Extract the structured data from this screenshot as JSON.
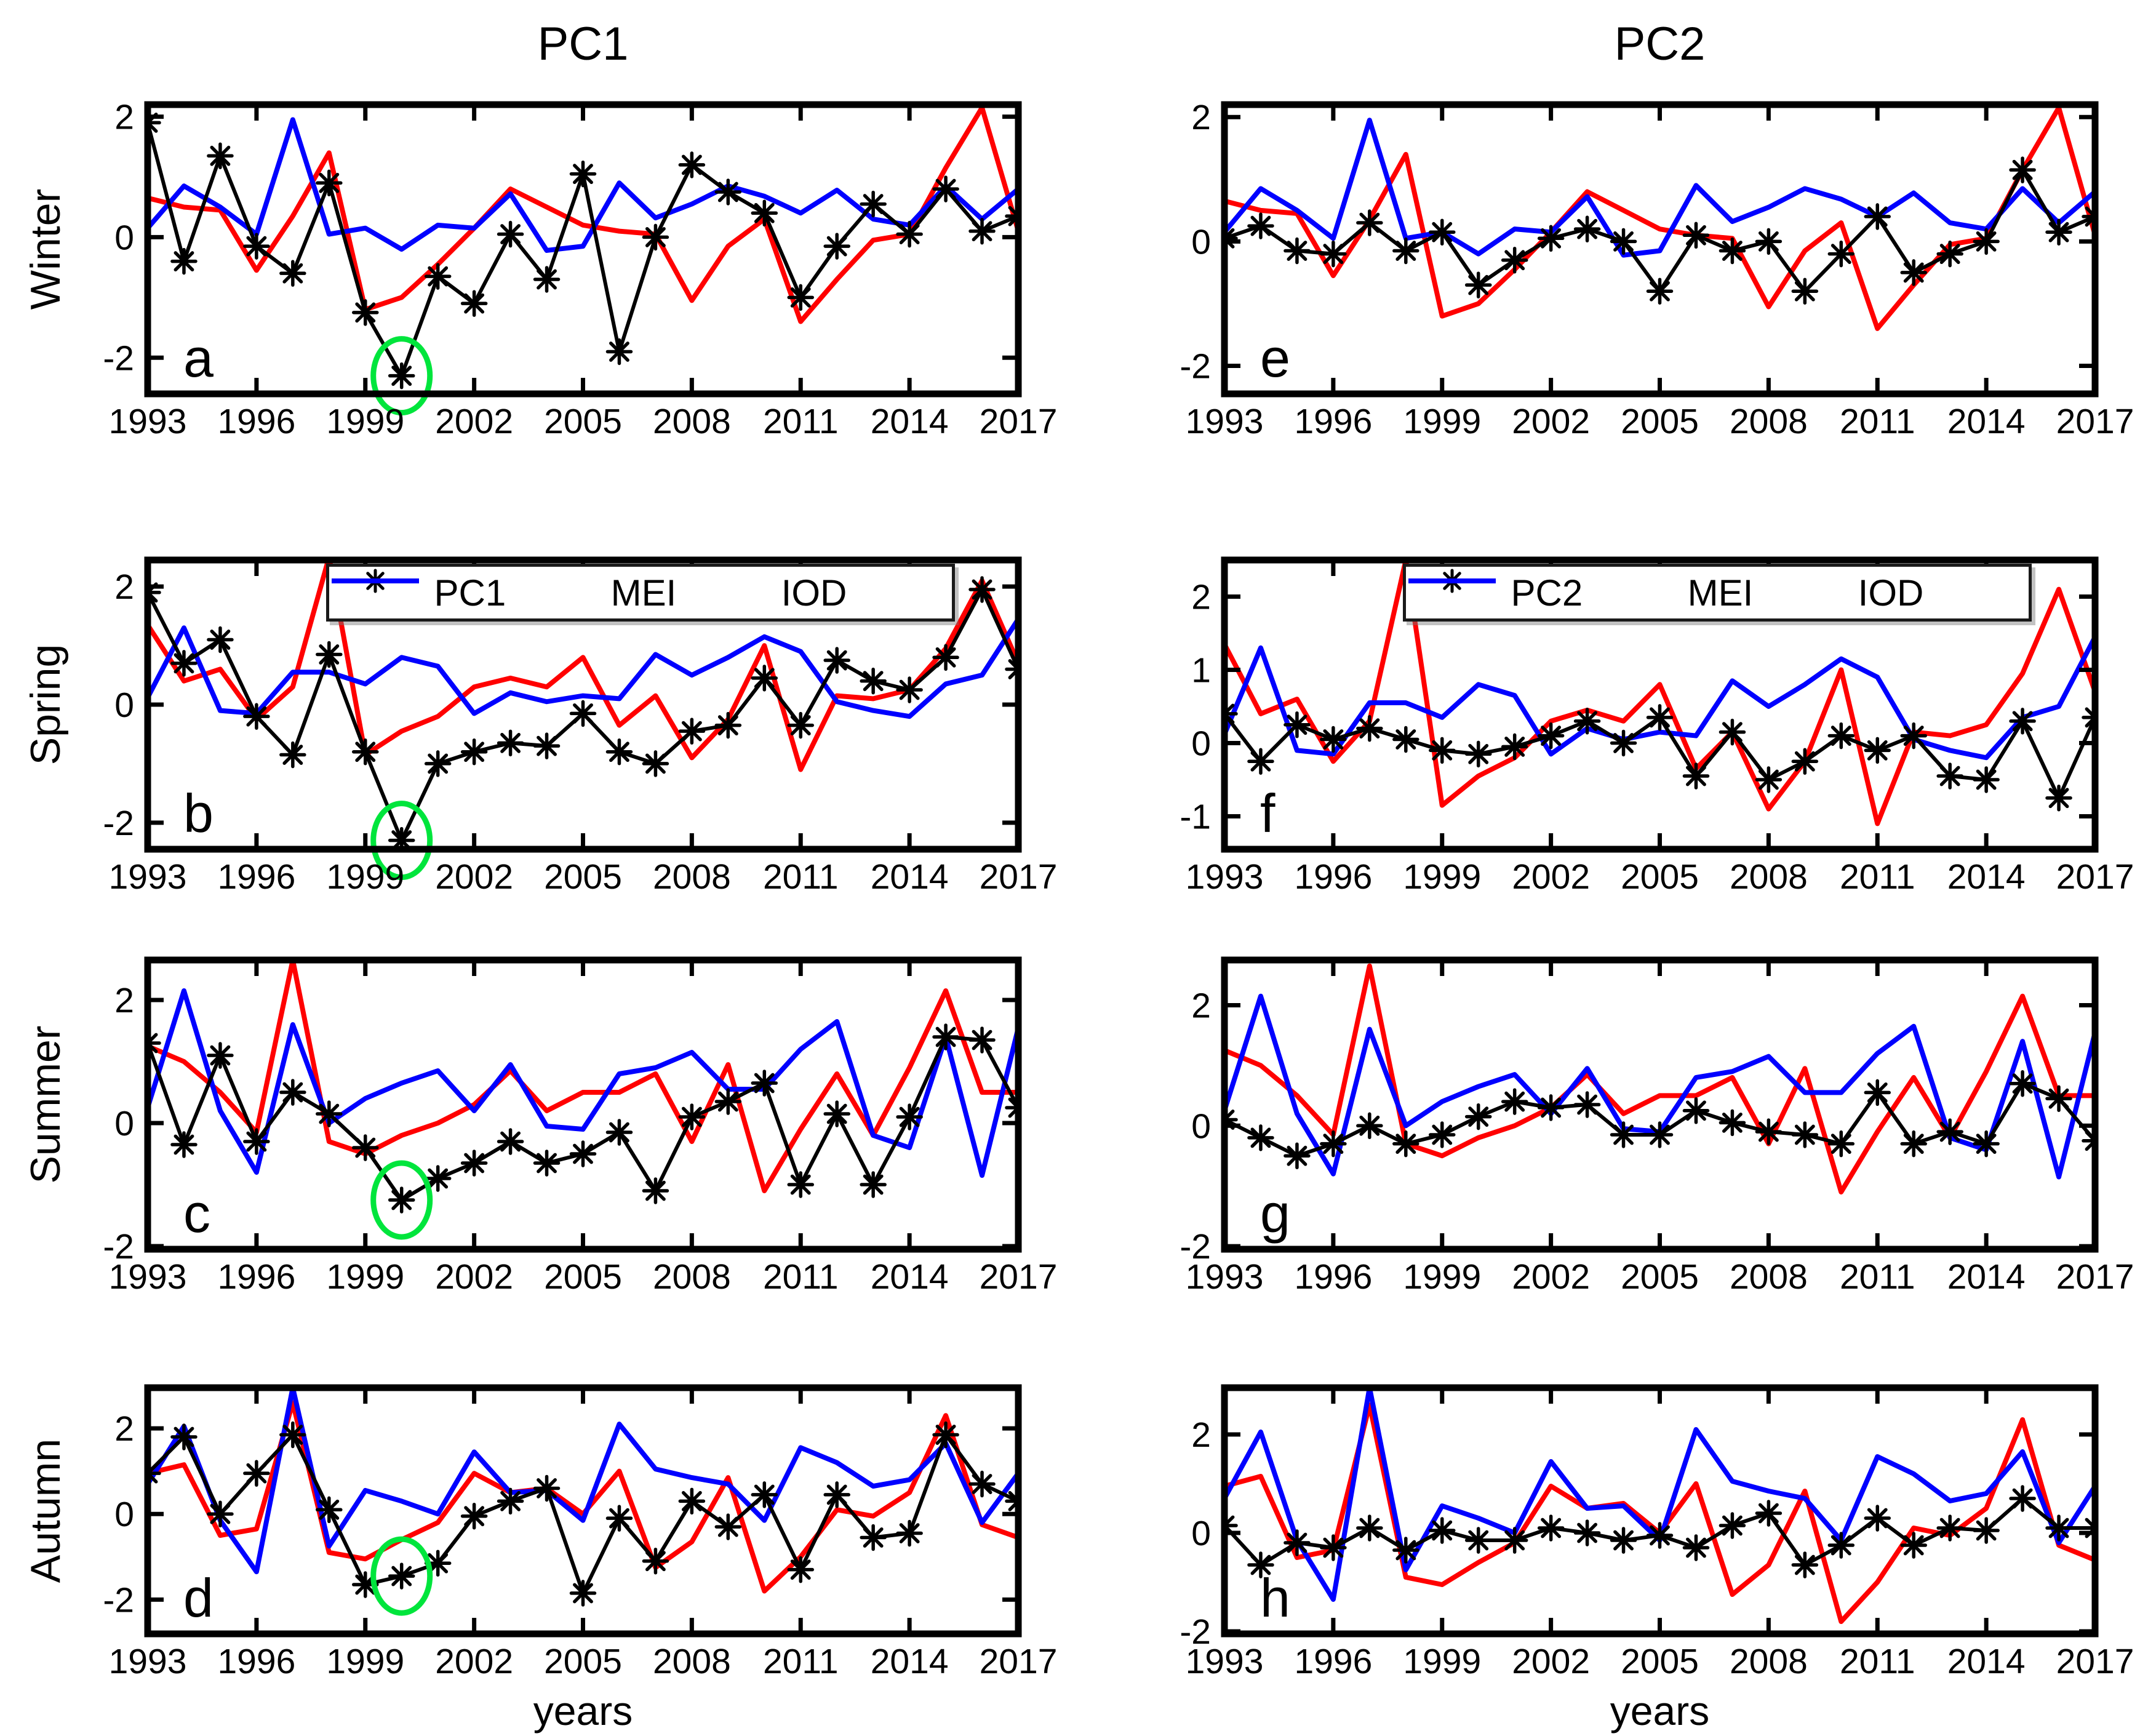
{
  "figure": {
    "column_titles": [
      "PC1",
      "PC2"
    ],
    "row_labels": [
      "Winter",
      "Spring",
      "Summer",
      "Autumn"
    ],
    "x_axis_label": "years"
  },
  "colors": {
    "pc": "#000000",
    "mei": "#ff0000",
    "iod": "#0000ff",
    "highlight": "#00e53c",
    "axis": "#000000"
  },
  "chart_data": {
    "type": "line",
    "x": [
      1993,
      1994,
      1995,
      1996,
      1997,
      1998,
      1999,
      2000,
      2001,
      2002,
      2003,
      2004,
      2005,
      2006,
      2007,
      2008,
      2009,
      2010,
      2011,
      2012,
      2013,
      2014,
      2015,
      2016,
      2017
    ],
    "xtick_labels": [
      1993,
      1996,
      1999,
      2002,
      2005,
      2008,
      2011,
      2014,
      2017
    ],
    "panels": [
      {
        "letter": "a",
        "season": "Winter",
        "column": "PC1",
        "ylim": [
          -2.6,
          2.2
        ],
        "yticks": [
          -2,
          0,
          2
        ],
        "legend": null,
        "highlight": {
          "year": 2000,
          "value": -2.3
        },
        "series": [
          {
            "name": "PC1",
            "color_key": "pc",
            "marker": "asterisk",
            "values": [
              1.9,
              -0.4,
              1.35,
              -0.15,
              -0.6,
              0.9,
              -1.25,
              -2.3,
              -0.65,
              -1.1,
              0.05,
              -0.7,
              1.05,
              -1.9,
              0.0,
              1.2,
              0.75,
              0.4,
              -1.0,
              -0.15,
              0.55,
              0.05,
              0.8,
              0.1,
              0.35
            ]
          },
          {
            "name": "MEI",
            "color_key": "mei",
            "marker": null,
            "values": [
              0.65,
              0.5,
              0.45,
              -0.55,
              0.35,
              1.4,
              -1.2,
              -1.0,
              -0.45,
              0.15,
              0.8,
              0.5,
              0.2,
              0.1,
              0.05,
              -1.05,
              -0.15,
              0.3,
              -1.4,
              -0.7,
              -0.05,
              0.05,
              1.15,
              2.15,
              0.1
            ]
          },
          {
            "name": "IOD",
            "color_key": "iod",
            "marker": null,
            "values": [
              0.15,
              0.85,
              0.5,
              0.05,
              1.95,
              0.05,
              0.15,
              -0.2,
              0.2,
              0.15,
              0.72,
              -0.22,
              -0.15,
              0.9,
              0.32,
              0.55,
              0.85,
              0.68,
              0.4,
              0.78,
              0.3,
              0.2,
              0.85,
              0.3,
              0.8
            ]
          }
        ]
      },
      {
        "letter": "e",
        "season": "Winter",
        "column": "PC2",
        "ylim": [
          -2.45,
          2.2
        ],
        "yticks": [
          -2,
          0,
          2
        ],
        "legend": null,
        "highlight": null,
        "series": [
          {
            "name": "PC2",
            "color_key": "pc",
            "marker": "asterisk",
            "values": [
              0.05,
              0.25,
              -0.15,
              -0.2,
              0.3,
              -0.15,
              0.15,
              -0.7,
              -0.3,
              0.05,
              0.2,
              0.0,
              -0.8,
              0.1,
              -0.15,
              0.0,
              -0.8,
              -0.2,
              0.4,
              -0.5,
              -0.2,
              0.0,
              1.15,
              0.15,
              0.4
            ]
          },
          {
            "name": "MEI",
            "color_key": "mei",
            "marker": null,
            "values": [
              0.65,
              0.5,
              0.45,
              -0.55,
              0.35,
              1.4,
              -1.2,
              -1.0,
              -0.45,
              0.15,
              0.8,
              0.5,
              0.2,
              0.1,
              0.05,
              -1.05,
              -0.15,
              0.3,
              -1.4,
              -0.7,
              -0.05,
              0.05,
              1.15,
              2.15,
              0.1
            ]
          },
          {
            "name": "IOD",
            "color_key": "iod",
            "marker": null,
            "values": [
              0.15,
              0.85,
              0.5,
              0.05,
              1.95,
              0.05,
              0.15,
              -0.2,
              0.2,
              0.15,
              0.72,
              -0.22,
              -0.15,
              0.9,
              0.32,
              0.55,
              0.85,
              0.68,
              0.4,
              0.78,
              0.3,
              0.2,
              0.85,
              0.3,
              0.8
            ]
          }
        ]
      },
      {
        "letter": "b",
        "season": "Spring",
        "column": "PC1",
        "ylim": [
          -2.45,
          2.45
        ],
        "yticks": [
          -2,
          0,
          2
        ],
        "legend": [
          "PC1",
          "MEI",
          "IOD"
        ],
        "highlight": {
          "year": 2000,
          "value": -2.3
        },
        "series": [
          {
            "name": "PC1",
            "color_key": "pc",
            "marker": "asterisk",
            "values": [
              1.9,
              0.7,
              1.1,
              -0.2,
              -0.85,
              0.85,
              -0.8,
              -2.3,
              -1.0,
              -0.8,
              -0.65,
              -0.7,
              -0.15,
              -0.8,
              -1.0,
              -0.45,
              -0.35,
              0.45,
              -0.35,
              0.75,
              0.4,
              0.25,
              0.8,
              1.95,
              0.6
            ]
          },
          {
            "name": "MEI",
            "color_key": "mei",
            "marker": null,
            "values": [
              1.35,
              0.4,
              0.6,
              -0.25,
              0.3,
              2.5,
              -0.85,
              -0.45,
              -0.2,
              0.3,
              0.45,
              0.3,
              0.8,
              -0.35,
              0.15,
              -0.9,
              -0.25,
              1.0,
              -1.1,
              0.15,
              0.1,
              0.25,
              0.95,
              2.1,
              0.7
            ]
          },
          {
            "name": "IOD",
            "color_key": "iod",
            "marker": null,
            "values": [
              0.12,
              1.3,
              -0.1,
              -0.15,
              0.55,
              0.55,
              0.35,
              0.8,
              0.65,
              -0.15,
              0.2,
              0.05,
              0.15,
              0.1,
              0.85,
              0.5,
              0.8,
              1.15,
              0.9,
              0.05,
              -0.1,
              -0.2,
              0.35,
              0.5,
              1.45
            ]
          }
        ]
      },
      {
        "letter": "f",
        "season": "Spring",
        "column": "PC2",
        "ylim": [
          -1.45,
          2.5
        ],
        "yticks": [
          -1,
          0,
          1,
          2
        ],
        "legend": [
          "PC2",
          "MEI",
          "IOD"
        ],
        "highlight": null,
        "series": [
          {
            "name": "PC2",
            "color_key": "pc",
            "marker": "asterisk",
            "values": [
              0.4,
              -0.25,
              0.25,
              0.05,
              0.2,
              0.05,
              -0.1,
              -0.15,
              -0.05,
              0.1,
              0.3,
              0.0,
              0.35,
              -0.45,
              0.15,
              -0.5,
              -0.25,
              0.1,
              -0.1,
              0.1,
              -0.45,
              -0.5,
              0.3,
              -0.75,
              0.35
            ]
          },
          {
            "name": "MEI",
            "color_key": "mei",
            "marker": null,
            "values": [
              1.35,
              0.4,
              0.6,
              -0.25,
              0.3,
              2.5,
              -0.85,
              -0.45,
              -0.2,
              0.3,
              0.45,
              0.3,
              0.8,
              -0.35,
              0.15,
              -0.9,
              -0.25,
              1.0,
              -1.1,
              0.15,
              0.1,
              0.25,
              0.95,
              2.1,
              0.7
            ]
          },
          {
            "name": "IOD",
            "color_key": "iod",
            "marker": null,
            "values": [
              0.12,
              1.3,
              -0.1,
              -0.15,
              0.55,
              0.55,
              0.35,
              0.8,
              0.65,
              -0.15,
              0.2,
              0.05,
              0.15,
              0.1,
              0.85,
              0.5,
              0.8,
              1.15,
              0.9,
              0.05,
              -0.1,
              -0.2,
              0.35,
              0.5,
              1.45
            ]
          }
        ]
      },
      {
        "letter": "c",
        "season": "Summer",
        "column": "PC1",
        "ylim": [
          -2.05,
          2.65
        ],
        "yticks": [
          -2,
          0,
          2
        ],
        "legend": null,
        "highlight": {
          "year": 2000,
          "value": -1.25
        },
        "series": [
          {
            "name": "PC1",
            "color_key": "pc",
            "marker": "asterisk",
            "values": [
              1.3,
              -0.35,
              1.1,
              -0.3,
              0.5,
              0.15,
              -0.4,
              -1.25,
              -0.9,
              -0.65,
              -0.3,
              -0.65,
              -0.5,
              -0.15,
              -1.1,
              0.1,
              0.35,
              0.65,
              -1.0,
              0.15,
              -1.0,
              0.1,
              1.4,
              1.35,
              0.25
            ]
          },
          {
            "name": "MEI",
            "color_key": "mei",
            "marker": null,
            "values": [
              1.25,
              1.0,
              0.5,
              -0.15,
              2.65,
              -0.3,
              -0.5,
              -0.2,
              0.0,
              0.3,
              0.85,
              0.2,
              0.5,
              0.5,
              0.8,
              -0.3,
              0.95,
              -1.1,
              -0.1,
              0.8,
              -0.2,
              0.9,
              2.15,
              0.5,
              0.5
            ]
          },
          {
            "name": "IOD",
            "color_key": "iod",
            "marker": null,
            "values": [
              0.25,
              2.15,
              0.2,
              -0.8,
              1.6,
              0.0,
              0.4,
              0.65,
              0.85,
              0.2,
              0.95,
              -0.05,
              -0.1,
              0.8,
              0.9,
              1.15,
              0.55,
              0.55,
              1.2,
              1.65,
              -0.2,
              -0.4,
              1.4,
              -0.85,
              1.55
            ]
          }
        ]
      },
      {
        "letter": "g",
        "season": "Summer",
        "column": "PC2",
        "ylim": [
          -2.05,
          2.75
        ],
        "yticks": [
          -2,
          0,
          2
        ],
        "legend": null,
        "highlight": null,
        "series": [
          {
            "name": "PC2",
            "color_key": "pc",
            "marker": "asterisk",
            "values": [
              0.1,
              -0.2,
              -0.5,
              -0.3,
              0.0,
              -0.3,
              -0.15,
              0.15,
              0.4,
              0.3,
              0.35,
              -0.15,
              -0.15,
              0.25,
              0.05,
              -0.1,
              -0.15,
              -0.3,
              0.55,
              -0.3,
              -0.1,
              -0.3,
              0.7,
              0.45,
              -0.25
            ]
          },
          {
            "name": "MEI",
            "color_key": "mei",
            "marker": null,
            "values": [
              1.25,
              1.0,
              0.5,
              -0.15,
              2.65,
              -0.3,
              -0.5,
              -0.2,
              0.0,
              0.3,
              0.85,
              0.2,
              0.5,
              0.5,
              0.8,
              -0.3,
              0.95,
              -1.1,
              -0.1,
              0.8,
              -0.2,
              0.9,
              2.15,
              0.5,
              0.5
            ]
          },
          {
            "name": "IOD",
            "color_key": "iod",
            "marker": null,
            "values": [
              0.25,
              2.15,
              0.2,
              -0.8,
              1.6,
              0.0,
              0.4,
              0.65,
              0.85,
              0.2,
              0.95,
              -0.05,
              -0.1,
              0.8,
              0.9,
              1.15,
              0.55,
              0.55,
              1.2,
              1.65,
              -0.2,
              -0.4,
              1.4,
              -0.85,
              1.55
            ]
          }
        ]
      },
      {
        "letter": "d",
        "season": "Autumn",
        "column": "PC1",
        "ylim": [
          -2.8,
          2.95
        ],
        "yticks": [
          -2,
          0,
          2
        ],
        "legend": null,
        "highlight": {
          "year": 2000,
          "value": -1.45
        },
        "series": [
          {
            "name": "PC1",
            "color_key": "pc",
            "marker": "asterisk",
            "values": [
              0.95,
              1.8,
              0.0,
              0.95,
              1.85,
              0.1,
              -1.65,
              -1.45,
              -1.15,
              -0.05,
              0.3,
              0.6,
              -1.85,
              -0.1,
              -1.1,
              0.3,
              -0.3,
              0.45,
              -1.3,
              0.45,
              -0.55,
              -0.45,
              1.85,
              0.7,
              0.3
            ]
          },
          {
            "name": "MEI",
            "color_key": "mei",
            "marker": null,
            "values": [
              0.95,
              1.15,
              -0.5,
              -0.35,
              2.6,
              -0.9,
              -1.05,
              -0.6,
              -0.2,
              0.95,
              0.5,
              0.6,
              0.0,
              1.0,
              -1.25,
              -0.65,
              0.85,
              -1.8,
              -1.0,
              0.1,
              -0.05,
              0.5,
              2.3,
              -0.25,
              -0.55
            ]
          },
          {
            "name": "IOD",
            "color_key": "iod",
            "marker": null,
            "values": [
              0.7,
              2.05,
              -0.15,
              -1.35,
              2.95,
              -0.75,
              0.55,
              0.3,
              0.0,
              1.45,
              0.5,
              0.55,
              -0.15,
              2.1,
              1.05,
              0.85,
              0.7,
              -0.15,
              1.55,
              1.2,
              0.65,
              0.8,
              1.65,
              -0.2,
              0.95
            ]
          }
        ]
      },
      {
        "letter": "h",
        "season": "Autumn",
        "column": "PC2",
        "ylim": [
          -2.05,
          2.95
        ],
        "yticks": [
          -2,
          0,
          2
        ],
        "legend": null,
        "highlight": null,
        "series": [
          {
            "name": "PC2",
            "color_key": "pc",
            "marker": "asterisk",
            "values": [
              0.15,
              -0.65,
              -0.2,
              -0.3,
              0.1,
              -0.35,
              0.05,
              -0.15,
              -0.15,
              0.1,
              0.0,
              -0.15,
              -0.05,
              -0.3,
              0.15,
              0.4,
              -0.65,
              -0.25,
              0.3,
              -0.25,
              0.1,
              0.05,
              0.7,
              0.1,
              0.1
            ]
          },
          {
            "name": "MEI",
            "color_key": "mei",
            "marker": null,
            "values": [
              0.95,
              1.15,
              -0.5,
              -0.35,
              2.6,
              -0.9,
              -1.05,
              -0.6,
              -0.2,
              0.95,
              0.5,
              0.6,
              0.0,
              1.0,
              -1.25,
              -0.65,
              0.85,
              -1.8,
              -1.0,
              0.1,
              -0.05,
              0.5,
              2.3,
              -0.25,
              -0.55
            ]
          },
          {
            "name": "IOD",
            "color_key": "iod",
            "marker": null,
            "values": [
              0.7,
              2.05,
              -0.15,
              -1.35,
              2.95,
              -0.75,
              0.55,
              0.3,
              0.0,
              1.45,
              0.5,
              0.55,
              -0.15,
              2.1,
              1.05,
              0.85,
              0.7,
              -0.15,
              1.55,
              1.2,
              0.65,
              0.8,
              1.65,
              -0.2,
              0.95
            ]
          }
        ]
      }
    ]
  }
}
